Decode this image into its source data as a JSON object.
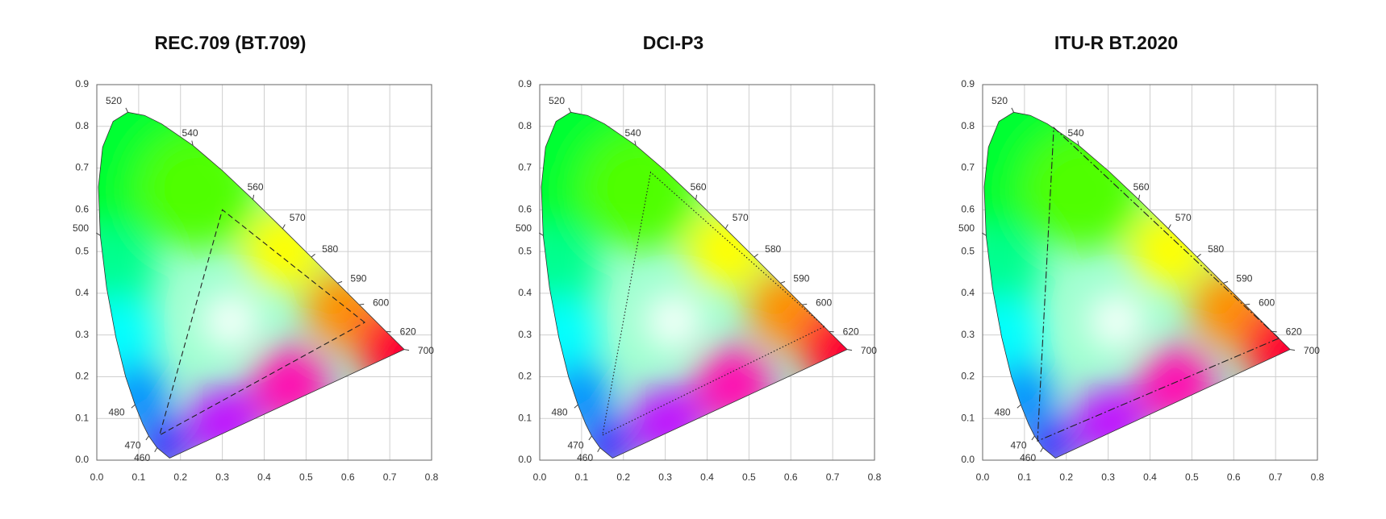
{
  "chart_data": [
    {
      "type": "chromaticity",
      "title": "REC.709 (BT.709)",
      "xlim": [
        0,
        0.8
      ],
      "ylim": [
        0,
        0.9
      ],
      "xticks": [
        {
          "value": 0,
          "label": "0.0"
        },
        0.1,
        0.2,
        0.3,
        0.4,
        0.5,
        0.6,
        0.7,
        0.8
      ],
      "yticks": [
        {
          "value": 0,
          "label": "0.0"
        },
        0.1,
        0.2,
        0.3,
        0.4,
        0.5,
        0.6,
        0.7,
        0.8,
        0.9
      ],
      "grid": true,
      "locus": {
        "x": [
          0.1741,
          0.144,
          0.1241,
          0.1096,
          0.0913,
          0.0687,
          0.0454,
          0.0235,
          0.0082,
          0.0039,
          0.0139,
          0.0389,
          0.0743,
          0.1142,
          0.1547,
          0.2296,
          0.3016,
          0.3731,
          0.4441,
          0.5125,
          0.5752,
          0.627,
          0.6915,
          0.7347
        ],
        "y": [
          0.005,
          0.0297,
          0.0578,
          0.0868,
          0.1327,
          0.2007,
          0.295,
          0.4127,
          0.5384,
          0.6548,
          0.7502,
          0.812,
          0.8338,
          0.8262,
          0.8059,
          0.7543,
          0.6923,
          0.6245,
          0.5547,
          0.4866,
          0.4242,
          0.3725,
          0.3083,
          0.2653
        ]
      },
      "wavelengths": {
        "labels": [
          460,
          470,
          480,
          500,
          520,
          540,
          560,
          570,
          580,
          590,
          600,
          620,
          700
        ],
        "x": [
          0.144,
          0.1241,
          0.0913,
          0.0082,
          0.0743,
          0.2296,
          0.3731,
          0.4441,
          0.5125,
          0.5752,
          0.627,
          0.6915,
          0.7347
        ],
        "y": [
          0.0297,
          0.0578,
          0.1327,
          0.5384,
          0.8338,
          0.7543,
          0.6245,
          0.5547,
          0.4866,
          0.4242,
          0.3725,
          0.3083,
          0.2653
        ]
      },
      "gamut": {
        "x": [
          0.64,
          0.3,
          0.15
        ],
        "y": [
          0.33,
          0.6,
          0.06
        ],
        "line_style": "dashed"
      }
    },
    {
      "type": "chromaticity",
      "title": "DCI-P3",
      "xlim": [
        0,
        0.8
      ],
      "ylim": [
        0,
        0.9
      ],
      "xticks": [
        {
          "value": 0,
          "label": "0.0"
        },
        0.1,
        0.2,
        0.3,
        0.4,
        0.5,
        0.6,
        0.7,
        0.8
      ],
      "yticks": [
        {
          "value": 0,
          "label": "0.0"
        },
        0.1,
        0.2,
        0.3,
        0.4,
        0.5,
        0.6,
        0.7,
        0.8,
        0.9
      ],
      "grid": true,
      "locus": {
        "x": [
          0.1741,
          0.144,
          0.1241,
          0.1096,
          0.0913,
          0.0687,
          0.0454,
          0.0235,
          0.0082,
          0.0039,
          0.0139,
          0.0389,
          0.0743,
          0.1142,
          0.1547,
          0.2296,
          0.3016,
          0.3731,
          0.4441,
          0.5125,
          0.5752,
          0.627,
          0.6915,
          0.7347
        ],
        "y": [
          0.005,
          0.0297,
          0.0578,
          0.0868,
          0.1327,
          0.2007,
          0.295,
          0.4127,
          0.5384,
          0.6548,
          0.7502,
          0.812,
          0.8338,
          0.8262,
          0.8059,
          0.7543,
          0.6923,
          0.6245,
          0.5547,
          0.4866,
          0.4242,
          0.3725,
          0.3083,
          0.2653
        ]
      },
      "wavelengths": {
        "labels": [
          460,
          470,
          480,
          500,
          520,
          540,
          560,
          570,
          580,
          590,
          600,
          620,
          700
        ],
        "x": [
          0.144,
          0.1241,
          0.0913,
          0.0082,
          0.0743,
          0.2296,
          0.3731,
          0.4441,
          0.5125,
          0.5752,
          0.627,
          0.6915,
          0.7347
        ],
        "y": [
          0.0297,
          0.0578,
          0.1327,
          0.5384,
          0.8338,
          0.7543,
          0.6245,
          0.5547,
          0.4866,
          0.4242,
          0.3725,
          0.3083,
          0.2653
        ]
      },
      "gamut": {
        "x": [
          0.68,
          0.265,
          0.15
        ],
        "y": [
          0.32,
          0.69,
          0.06
        ],
        "line_style": "dotted"
      }
    },
    {
      "type": "chromaticity",
      "title": "ITU-R BT.2020",
      "xlim": [
        0,
        0.8
      ],
      "ylim": [
        0,
        0.9
      ],
      "xticks": [
        {
          "value": 0,
          "label": "0.0"
        },
        0.1,
        0.2,
        0.3,
        0.4,
        0.5,
        0.6,
        0.7,
        0.8
      ],
      "yticks": [
        {
          "value": 0,
          "label": "0.0"
        },
        0.1,
        0.2,
        0.3,
        0.4,
        0.5,
        0.6,
        0.7,
        0.8,
        0.9
      ],
      "grid": true,
      "locus": {
        "x": [
          0.1741,
          0.144,
          0.1241,
          0.1096,
          0.0913,
          0.0687,
          0.0454,
          0.0235,
          0.0082,
          0.0039,
          0.0139,
          0.0389,
          0.0743,
          0.1142,
          0.1547,
          0.2296,
          0.3016,
          0.3731,
          0.4441,
          0.5125,
          0.5752,
          0.627,
          0.6915,
          0.7347
        ],
        "y": [
          0.005,
          0.0297,
          0.0578,
          0.0868,
          0.1327,
          0.2007,
          0.295,
          0.4127,
          0.5384,
          0.6548,
          0.7502,
          0.812,
          0.8338,
          0.8262,
          0.8059,
          0.7543,
          0.6923,
          0.6245,
          0.5547,
          0.4866,
          0.4242,
          0.3725,
          0.3083,
          0.2653
        ]
      },
      "wavelengths": {
        "labels": [
          460,
          470,
          480,
          500,
          520,
          540,
          560,
          570,
          580,
          590,
          600,
          620,
          700
        ],
        "x": [
          0.144,
          0.1241,
          0.0913,
          0.0082,
          0.0743,
          0.2296,
          0.3731,
          0.4441,
          0.5125,
          0.5752,
          0.627,
          0.6915,
          0.7347
        ],
        "y": [
          0.0297,
          0.0578,
          0.1327,
          0.5384,
          0.8338,
          0.7543,
          0.6245,
          0.5547,
          0.4866,
          0.4242,
          0.3725,
          0.3083,
          0.2653
        ]
      },
      "gamut": {
        "x": [
          0.708,
          0.17,
          0.131
        ],
        "y": [
          0.292,
          0.797,
          0.046
        ],
        "line_style": "dashdot"
      }
    }
  ]
}
